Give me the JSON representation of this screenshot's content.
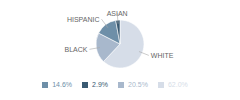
{
  "chart_data": {
    "type": "pie",
    "categories": [
      "WHITE",
      "BLACK",
      "HISPANIC",
      "ASIAN"
    ],
    "values": [
      62.0,
      20.5,
      14.6,
      2.9
    ],
    "value_labels": [
      "62.0%",
      "20.5%",
      "14.6%",
      "2.9%"
    ],
    "colors": [
      "#d6dde8",
      "#a8b8cc",
      "#6e8fa8",
      "#3a5a72"
    ],
    "legend": "bottom"
  }
}
